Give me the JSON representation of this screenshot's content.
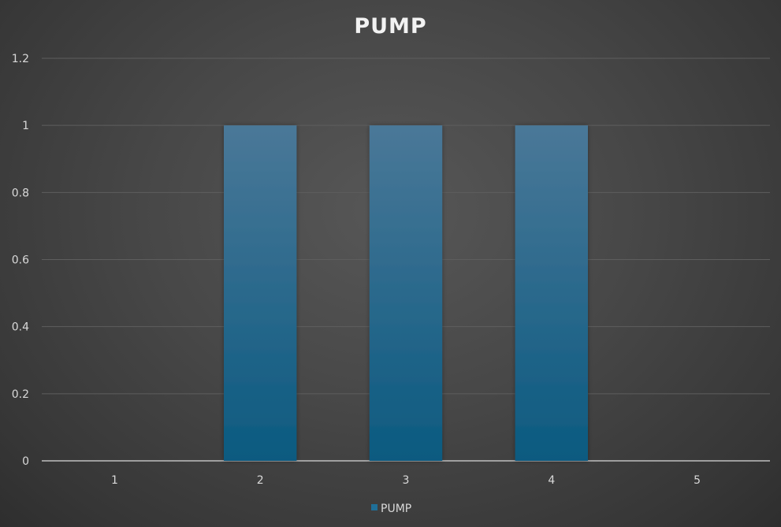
{
  "chart_data": {
    "type": "bar",
    "title": "PUMP",
    "xlabel": "",
    "ylabel": "",
    "categories": [
      "1",
      "2",
      "3",
      "4",
      "5"
    ],
    "series": [
      {
        "name": "PUMP",
        "values": [
          0,
          1,
          1,
          1,
          0
        ]
      }
    ],
    "ylim": [
      0,
      1.2
    ],
    "yticks": [
      "0",
      "0.2",
      "0.4",
      "0.6",
      "0.8",
      "1",
      "1.2"
    ],
    "grid": true,
    "legend_position": "bottom",
    "colors": {
      "bar_top": "#4a7898",
      "bar_bottom": "#0b5a80",
      "background": "#4a4a4a",
      "text": "#d9d9d9",
      "title": "#f2f2f2",
      "legend_marker": "#1f6f98"
    }
  }
}
